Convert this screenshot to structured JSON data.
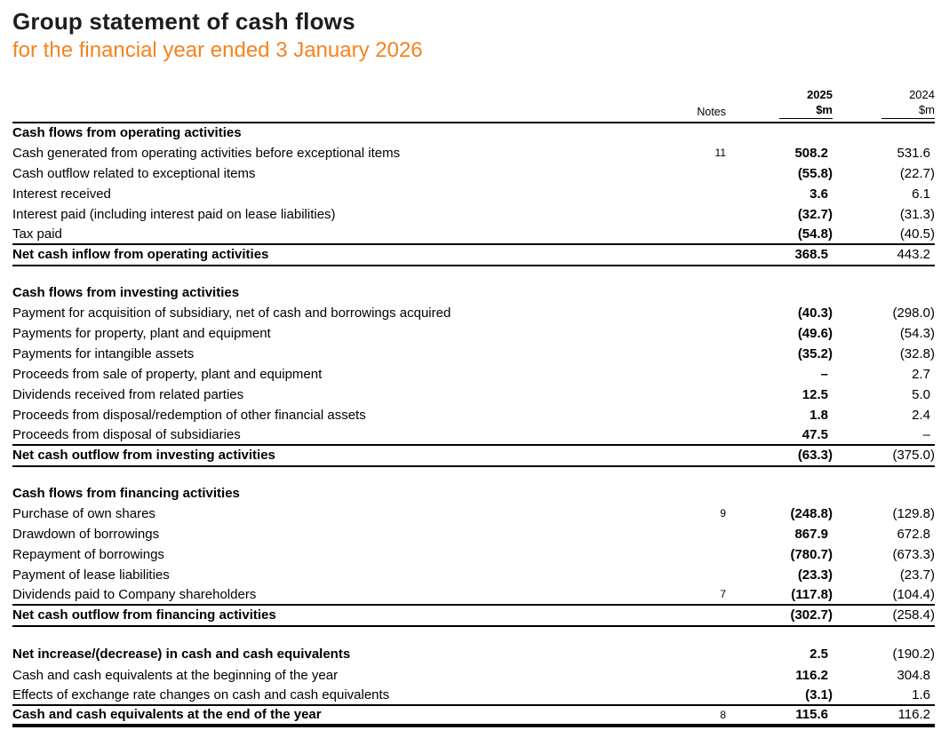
{
  "page": {
    "title": "Group statement of cash flows",
    "subtitle": "for the financial year ended 3 January 2026",
    "accent_color": "#f5821f",
    "text_color": "#000000"
  },
  "table": {
    "columns": {
      "notes": "Notes",
      "y2025": {
        "year": "2025",
        "unit": "$m"
      },
      "y2024": {
        "year": "2024",
        "unit": "$m"
      }
    },
    "sections": [
      {
        "header": "Cash flows from operating activities",
        "rows": [
          {
            "label": "Cash generated from operating activities before exceptional items",
            "note": "11",
            "v2025": "508.2",
            "v2024": "531.6"
          },
          {
            "label": "Cash outflow related to exceptional items",
            "note": "",
            "v2025": "(55.8)",
            "v2024": "(22.7)"
          },
          {
            "label": "Interest received",
            "note": "",
            "v2025": "3.6",
            "v2024": "6.1"
          },
          {
            "label": "Interest paid (including interest paid on lease liabilities)",
            "note": "",
            "v2025": "(32.7)",
            "v2024": "(31.3)"
          },
          {
            "label": "Tax paid",
            "note": "",
            "v2025": "(54.8)",
            "v2024": "(40.5)",
            "line_below": true
          },
          {
            "label": "Net cash inflow from operating activities",
            "note": "",
            "v2025": "368.5",
            "v2024": "443.2",
            "bold": true,
            "line_below": true
          }
        ]
      },
      {
        "header": "Cash flows from investing activities",
        "rows": [
          {
            "label": "Payment for acquisition of subsidiary, net of cash and borrowings acquired",
            "note": "",
            "v2025": "(40.3)",
            "v2024": "(298.0)"
          },
          {
            "label": "Payments for property, plant and equipment",
            "note": "",
            "v2025": "(49.6)",
            "v2024": "(54.3)"
          },
          {
            "label": "Payments for intangible assets",
            "note": "",
            "v2025": "(35.2)",
            "v2024": "(32.8)"
          },
          {
            "label": "Proceeds from sale of property, plant and equipment",
            "note": "",
            "v2025": "–",
            "v2024": "2.7"
          },
          {
            "label": "Dividends received from related parties",
            "note": "",
            "v2025": "12.5",
            "v2024": "5.0"
          },
          {
            "label": "Proceeds from disposal/redemption of other financial assets",
            "note": "",
            "v2025": "1.8",
            "v2024": "2.4"
          },
          {
            "label": "Proceeds from disposal of subsidiaries",
            "note": "",
            "v2025": "47.5",
            "v2024": "–",
            "line_below": true
          },
          {
            "label": "Net cash outflow from investing activities",
            "note": "",
            "v2025": "(63.3)",
            "v2024": "(375.0)",
            "bold": true,
            "line_below": true
          }
        ]
      },
      {
        "header": "Cash flows from financing activities",
        "rows": [
          {
            "label": "Purchase of own shares",
            "note": "9",
            "v2025": "(248.8)",
            "v2024": "(129.8)"
          },
          {
            "label": "Drawdown of borrowings",
            "note": "",
            "v2025": "867.9",
            "v2024": "672.8"
          },
          {
            "label": "Repayment of borrowings",
            "note": "",
            "v2025": "(780.7)",
            "v2024": "(673.3)"
          },
          {
            "label": "Payment of lease liabilities",
            "note": "",
            "v2025": "(23.3)",
            "v2024": "(23.7)"
          },
          {
            "label": "Dividends paid to Company shareholders",
            "note": "7",
            "v2025": "(117.8)",
            "v2024": "(104.4)",
            "line_below": true
          },
          {
            "label": "Net cash outflow from financing activities",
            "note": "",
            "v2025": "(302.7)",
            "v2024": "(258.4)",
            "bold": true,
            "line_below": true
          }
        ]
      },
      {
        "header": null,
        "rows": [
          {
            "label": "Net increase/(decrease) in cash and cash equivalents",
            "note": "",
            "v2025": "2.5",
            "v2024": "(190.2)",
            "bold": true
          },
          {
            "label": "Cash and cash equivalents at the beginning of the year",
            "note": "",
            "v2025": "116.2",
            "v2024": "304.8"
          },
          {
            "label": "Effects of exchange rate changes on cash and cash equivalents",
            "note": "",
            "v2025": "(3.1)",
            "v2024": "1.6",
            "line_below": true
          },
          {
            "label": "Cash and cash equivalents at the end of the year",
            "note": "8",
            "v2025": "115.6",
            "v2024": "116.2",
            "bold": true,
            "thick_below": true
          }
        ]
      }
    ]
  }
}
